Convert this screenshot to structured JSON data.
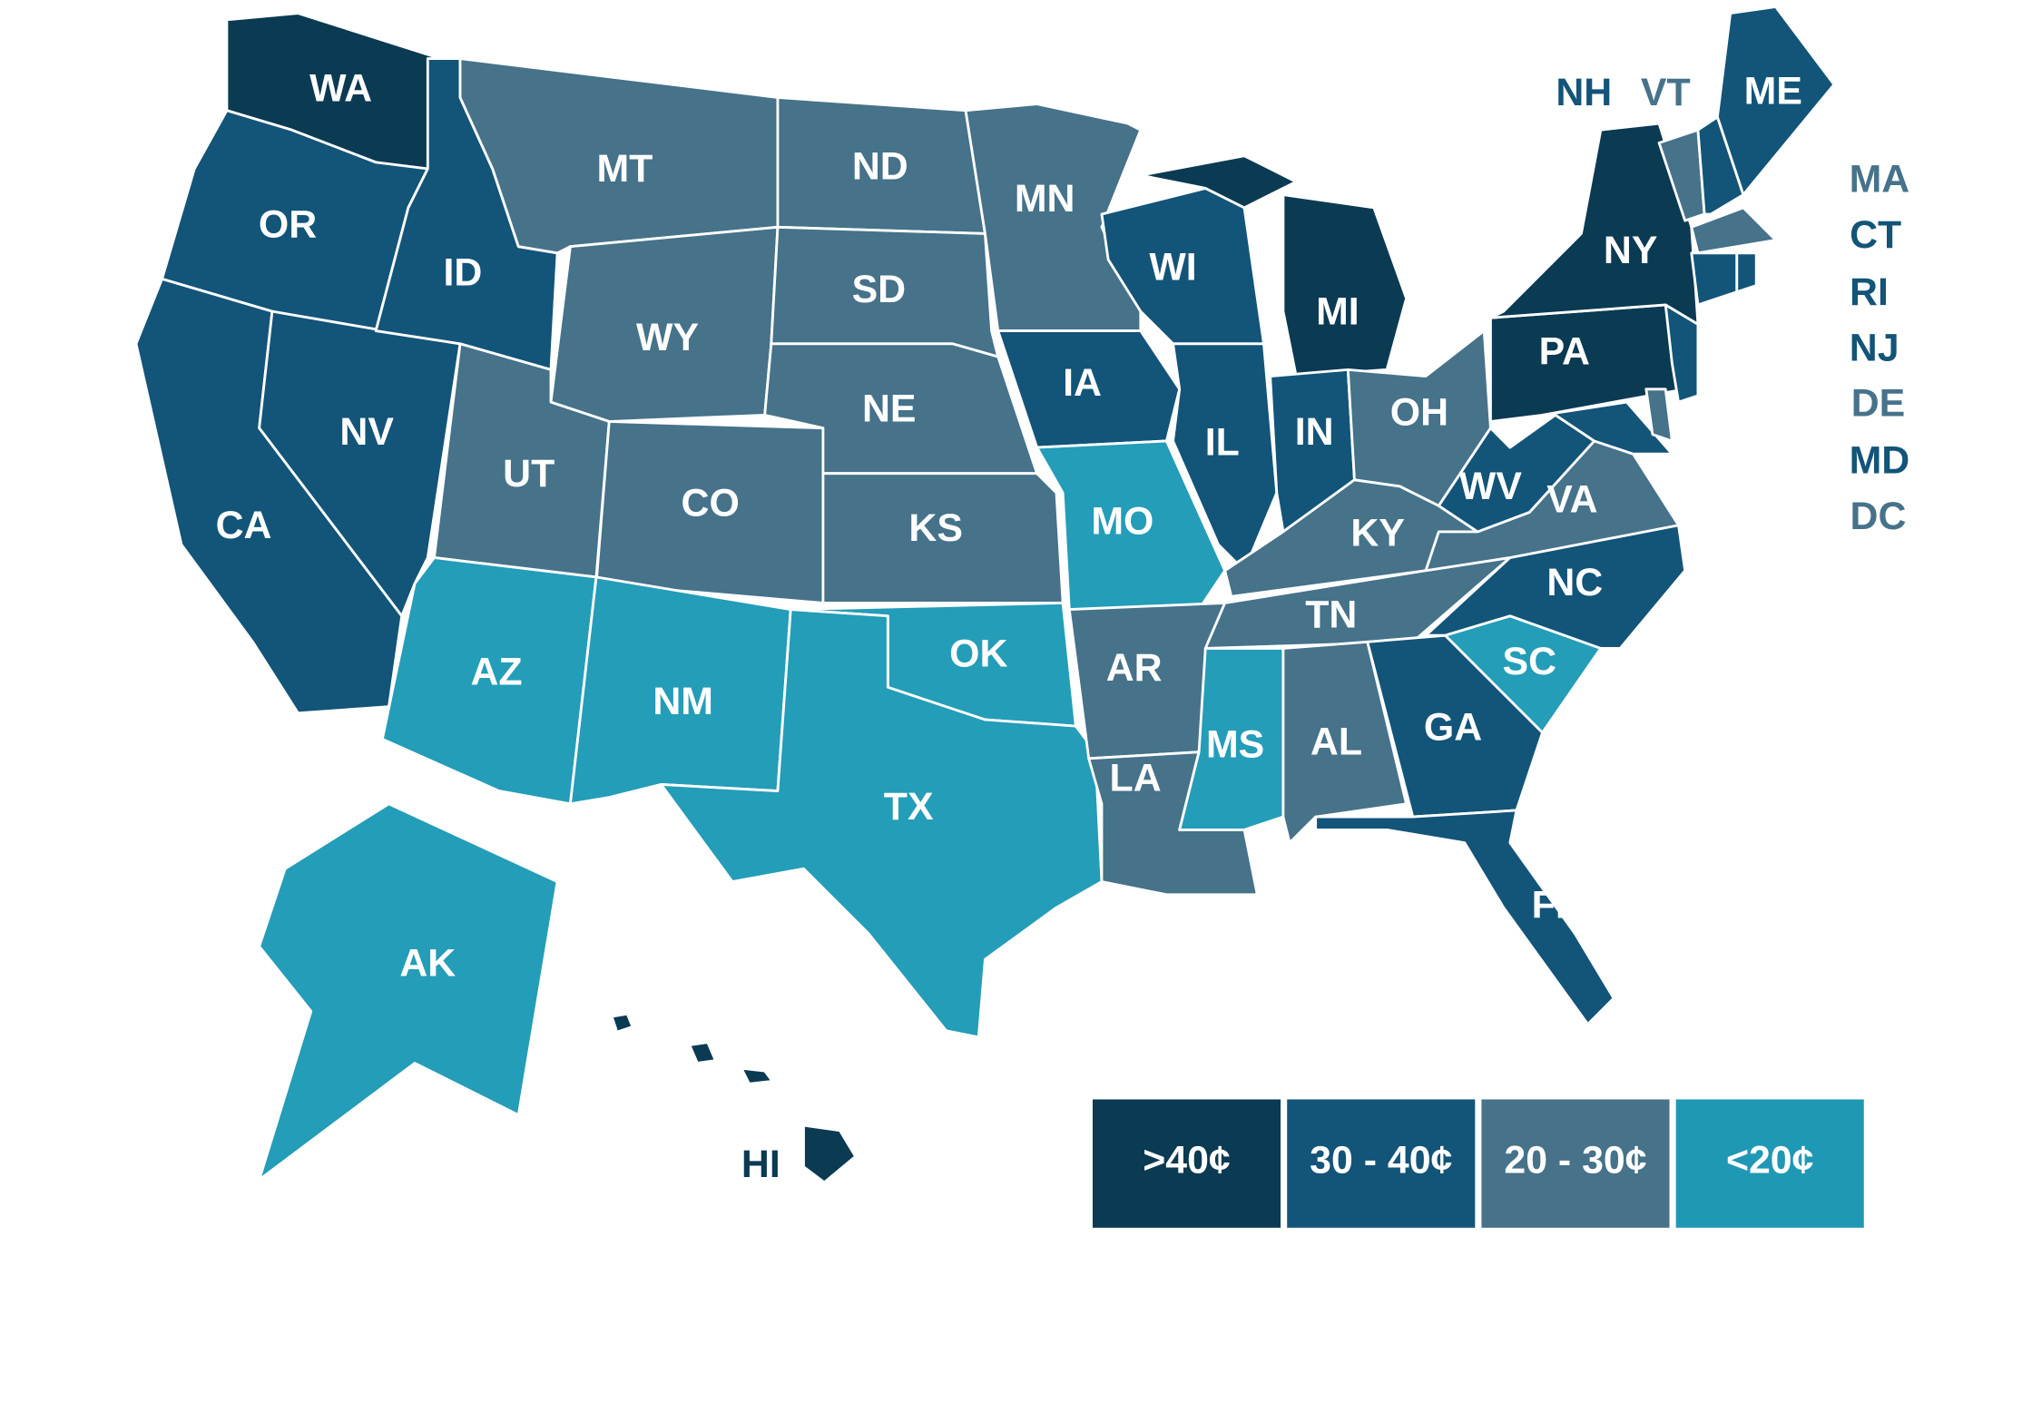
{
  "map": {
    "states": [
      {
        "label": "WA",
        "color": "#0b3a53"
      },
      {
        "label": "OR",
        "color": "#135479"
      },
      {
        "label": "CA",
        "color": "#135479"
      },
      {
        "label": "NV",
        "color": "#135479"
      },
      {
        "label": "ID",
        "color": "#135479"
      },
      {
        "label": "MT",
        "color": "#46728a"
      },
      {
        "label": "WY",
        "color": "#46728a"
      },
      {
        "label": "UT",
        "color": "#46728a"
      },
      {
        "label": "CO",
        "color": "#46728a"
      },
      {
        "label": "AZ",
        "color": "#239db8"
      },
      {
        "label": "NM",
        "color": "#239db8"
      },
      {
        "label": "ND",
        "color": "#46728a"
      },
      {
        "label": "SD",
        "color": "#46728a"
      },
      {
        "label": "NE",
        "color": "#46728a"
      },
      {
        "label": "KS",
        "color": "#46728a"
      },
      {
        "label": "OK",
        "color": "#239db8"
      },
      {
        "label": "TX",
        "color": "#239db8"
      },
      {
        "label": "MN",
        "color": "#46728a"
      },
      {
        "label": "IA",
        "color": "#135479"
      },
      {
        "label": "MO",
        "color": "#239db8"
      },
      {
        "label": "AR",
        "color": "#46728a"
      },
      {
        "label": "LA",
        "color": "#46728a"
      },
      {
        "label": "WI",
        "color": "#135479"
      },
      {
        "label": "IL",
        "color": "#135479"
      },
      {
        "label": "MI",
        "color": "#0b3a53"
      },
      {
        "label": "IN",
        "color": "#135479"
      },
      {
        "label": "OH",
        "color": "#46728a"
      },
      {
        "label": "KY",
        "color": "#46728a"
      },
      {
        "label": "TN",
        "color": "#46728a"
      },
      {
        "label": "MS",
        "color": "#239db8"
      },
      {
        "label": "AL",
        "color": "#46728a"
      },
      {
        "label": "GA",
        "color": "#135479"
      },
      {
        "label": "FL",
        "color": "#135479"
      },
      {
        "label": "SC",
        "color": "#239db8"
      },
      {
        "label": "NC",
        "color": "#135479"
      },
      {
        "label": "VA",
        "color": "#46728a"
      },
      {
        "label": "WV",
        "color": "#135479"
      },
      {
        "label": "PA",
        "color": "#0b3a53"
      },
      {
        "label": "NY",
        "color": "#0b3a53"
      },
      {
        "label": "NJ",
        "color": "#135479"
      },
      {
        "label": "MD",
        "color": "#135479"
      },
      {
        "label": "DE",
        "color": "#46728a"
      },
      {
        "label": "VT",
        "color": "#46728a"
      },
      {
        "label": "NH",
        "color": "#135479"
      },
      {
        "label": "ME",
        "color": "#135479"
      },
      {
        "label": "MA",
        "color": "#46728a"
      },
      {
        "label": "CT",
        "color": "#135479"
      },
      {
        "label": "RI",
        "color": "#135479"
      },
      {
        "label": "DC",
        "color": "#46728a"
      },
      {
        "label": "AK",
        "color": "#239db8"
      },
      {
        "label": "HI",
        "color": "#0b3a53"
      }
    ],
    "legend": [
      {
        "label": ">40¢",
        "color": "#0b3a53"
      },
      {
        "label": "30 - 40¢",
        "color": "#135479"
      },
      {
        "label": "20 - 30¢",
        "color": "#46728a"
      },
      {
        "label": "<20¢",
        "color": "#1f98b5"
      }
    ]
  }
}
